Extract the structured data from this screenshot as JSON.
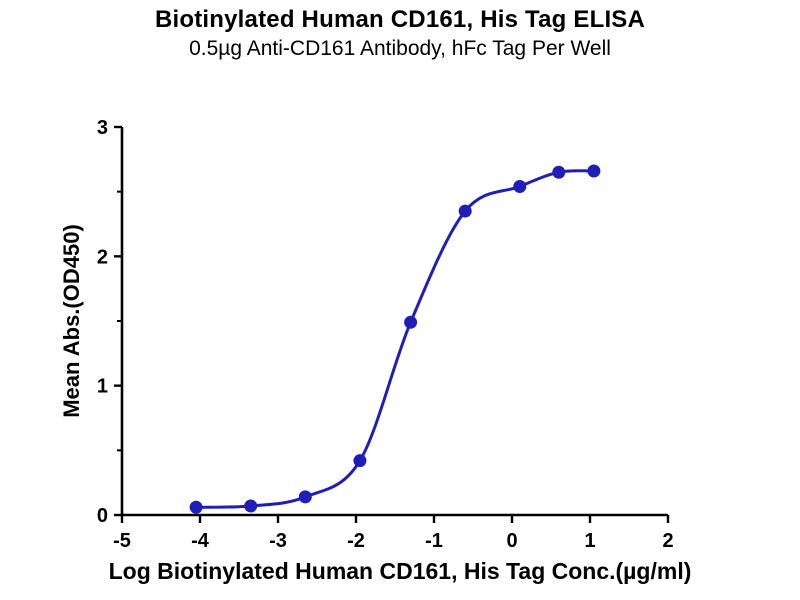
{
  "chart_data": {
    "type": "scatter",
    "title": "Biotinylated Human CD161, His Tag ELISA",
    "subtitle": "0.5µg Anti-CD161 Antibody, hFc Tag Per Well",
    "xlabel": "Log Biotinylated Human CD161, His Tag Conc.(µg/ml)",
    "ylabel": "Mean Abs.(OD450)",
    "xlim": [
      -5,
      2
    ],
    "ylim": [
      0,
      3
    ],
    "x_ticks": [
      -5,
      -4,
      -3,
      -2,
      -1,
      0,
      1,
      2
    ],
    "y_ticks": [
      0,
      1,
      2,
      3
    ],
    "y_minor_tick_step": 0.5,
    "grid": false,
    "legend": "none",
    "fit": "sigmoidal dose-response curve",
    "series": [
      {
        "color": "#1f1fb8",
        "marker": "circle",
        "points": [
          [
            -4.05,
            0.06
          ],
          [
            -3.35,
            0.07
          ],
          [
            -2.65,
            0.14
          ],
          [
            -1.95,
            0.42
          ],
          [
            -1.3,
            1.49
          ],
          [
            -0.6,
            2.35
          ],
          [
            0.1,
            2.54
          ],
          [
            0.6,
            2.65
          ],
          [
            1.05,
            2.66
          ]
        ]
      }
    ],
    "axis_color": "#000000",
    "background": "#ffffff"
  }
}
